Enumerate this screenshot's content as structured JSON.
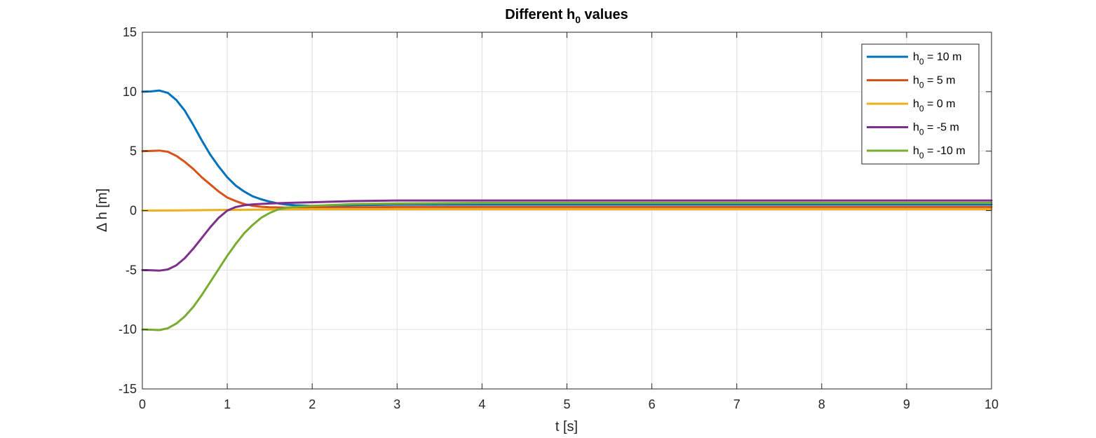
{
  "chart_data": {
    "type": "line",
    "title_main": "Different h",
    "title_sub": "0",
    "title_rest": " values",
    "xlabel": "t [s]",
    "ylabel": "Δ h [m]",
    "xlim": [
      0,
      10
    ],
    "ylim": [
      -15,
      15
    ],
    "xticks": [
      0,
      1,
      2,
      3,
      4,
      5,
      6,
      7,
      8,
      9,
      10
    ],
    "yticks": [
      -15,
      -10,
      -5,
      0,
      5,
      10,
      15
    ],
    "grid": true,
    "legend_position": "top-right",
    "series": [
      {
        "name_main": "h",
        "name_sub": "0",
        "name_rest": " = 10 m",
        "color": "#0072BD",
        "x": [
          0,
          0.1,
          0.2,
          0.3,
          0.4,
          0.5,
          0.6,
          0.7,
          0.8,
          0.9,
          1.0,
          1.1,
          1.2,
          1.3,
          1.4,
          1.5,
          1.6,
          1.7,
          1.8,
          2.0,
          2.5,
          3,
          4,
          5,
          6,
          7,
          8,
          9,
          10
        ],
        "y": [
          10,
          10.02,
          10.1,
          9.9,
          9.3,
          8.4,
          7.2,
          5.9,
          4.7,
          3.7,
          2.8,
          2.1,
          1.6,
          1.2,
          0.95,
          0.75,
          0.6,
          0.5,
          0.45,
          0.4,
          0.45,
          0.5,
          0.5,
          0.5,
          0.5,
          0.5,
          0.5,
          0.5,
          0.5
        ]
      },
      {
        "name_main": "h",
        "name_sub": "0",
        "name_rest": " = 5 m",
        "color": "#D95319",
        "x": [
          0,
          0.1,
          0.2,
          0.3,
          0.4,
          0.5,
          0.6,
          0.7,
          0.8,
          0.9,
          1.0,
          1.1,
          1.2,
          1.3,
          1.4,
          1.5,
          1.7,
          2.0,
          2.5,
          3,
          4,
          5,
          6,
          7,
          8,
          9,
          10
        ],
        "y": [
          5,
          5.02,
          5.05,
          4.95,
          4.6,
          4.1,
          3.5,
          2.8,
          2.2,
          1.6,
          1.1,
          0.8,
          0.55,
          0.4,
          0.32,
          0.28,
          0.25,
          0.25,
          0.27,
          0.3,
          0.3,
          0.3,
          0.3,
          0.3,
          0.3,
          0.3,
          0.3
        ]
      },
      {
        "name_main": "h",
        "name_sub": "0",
        "name_rest": " = 0 m",
        "color": "#EDB120",
        "x": [
          0,
          0.5,
          1.0,
          1.5,
          2.0,
          3,
          4,
          5,
          6,
          7,
          8,
          9,
          10
        ],
        "y": [
          0,
          0.02,
          0.06,
          0.1,
          0.12,
          0.12,
          0.12,
          0.12,
          0.12,
          0.12,
          0.12,
          0.12,
          0.12
        ]
      },
      {
        "name_main": "h",
        "name_sub": "0",
        "name_rest": " = -5 m",
        "color": "#7E2F8E",
        "x": [
          0,
          0.1,
          0.2,
          0.3,
          0.4,
          0.5,
          0.6,
          0.7,
          0.8,
          0.9,
          1.0,
          1.1,
          1.2,
          1.3,
          1.5,
          1.7,
          2.0,
          2.5,
          3,
          4,
          5,
          6,
          7,
          8,
          9,
          10
        ],
        "y": [
          -5,
          -5.02,
          -5.05,
          -4.95,
          -4.6,
          -4.0,
          -3.2,
          -2.3,
          -1.4,
          -0.6,
          0.0,
          0.3,
          0.45,
          0.52,
          0.6,
          0.65,
          0.7,
          0.8,
          0.85,
          0.85,
          0.85,
          0.85,
          0.85,
          0.85,
          0.85,
          0.85
        ]
      },
      {
        "name_main": "h",
        "name_sub": "0",
        "name_rest": " = -10 m",
        "color": "#77AC30",
        "x": [
          0,
          0.1,
          0.2,
          0.3,
          0.4,
          0.5,
          0.6,
          0.7,
          0.8,
          0.9,
          1.0,
          1.1,
          1.2,
          1.3,
          1.4,
          1.5,
          1.6,
          1.7,
          1.8,
          2.0,
          2.5,
          3,
          4,
          5,
          6,
          7,
          8,
          9,
          10
        ],
        "y": [
          -10,
          -10.02,
          -10.05,
          -9.9,
          -9.5,
          -8.9,
          -8.1,
          -7.1,
          -6.0,
          -4.9,
          -3.8,
          -2.8,
          -1.9,
          -1.2,
          -0.6,
          -0.2,
          0.1,
          0.25,
          0.3,
          0.4,
          0.55,
          0.6,
          0.65,
          0.65,
          0.65,
          0.65,
          0.65,
          0.65,
          0.65
        ]
      }
    ]
  }
}
